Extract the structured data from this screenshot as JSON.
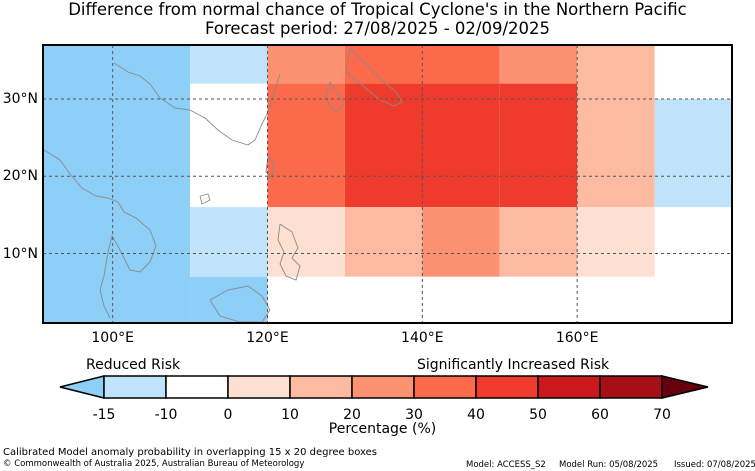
{
  "title": "Difference from normal chance of Tropical Cyclone's in the Northern Pacific",
  "forecast_period": "Forecast period: 27/08/2025 - 02/09/2025",
  "legend": {
    "low_label": "Reduced Risk",
    "high_label": "Significantly Increased Risk",
    "ticks": [
      "-15",
      "-10",
      "0",
      "10",
      "20",
      "30",
      "40",
      "50",
      "60",
      "70"
    ],
    "axis_label": "Percentage (%)",
    "colors": [
      "#8ecff7",
      "#bfe3fb",
      "#ffffff",
      "#fee0d2",
      "#fcbba1",
      "#fc9272",
      "#fb6a4a",
      "#ef3b2c",
      "#cb181d",
      "#a50f15",
      "#67000d"
    ]
  },
  "footer": {
    "note": "Calibrated Model anomaly probability in overlapping 15 x 20 degree boxes",
    "copyright": "© Commonwealth of Australia 2025, Australian Bureau of Meteorology",
    "model": "Model: ACCESS_S2",
    "model_run": "Model Run: 05/08/2025",
    "issued": "Issued: 07/08/2025"
  },
  "map": {
    "lon_range": [
      91,
      180
    ],
    "lat_range": [
      1,
      37
    ],
    "xticks": [
      {
        "lon": 100,
        "label": "100°E"
      },
      {
        "lon": 120,
        "label": "120°E"
      },
      {
        "lon": 140,
        "label": "140°E"
      },
      {
        "lon": 160,
        "label": "160°E"
      }
    ],
    "yticks": [
      {
        "lat": 10,
        "label": "10°N"
      },
      {
        "lat": 20,
        "label": "20°N"
      },
      {
        "lat": 30,
        "label": "30°N"
      }
    ]
  },
  "chart_data": {
    "type": "heatmap",
    "units": "%",
    "cells": [
      {
        "lon": [
          91,
          110
        ],
        "lat": [
          1,
          37
        ],
        "value": -15
      },
      {
        "lon": [
          110,
          120
        ],
        "lat": [
          1,
          7
        ],
        "value": -15
      },
      {
        "lon": [
          110,
          120
        ],
        "lat": [
          32,
          37
        ],
        "value": -10
      },
      {
        "lon": [
          110,
          120
        ],
        "lat": [
          7,
          16
        ],
        "value": -10
      },
      {
        "lon": [
          170,
          180
        ],
        "lat": [
          16,
          30
        ],
        "value": -10
      },
      {
        "lon": [
          120,
          130
        ],
        "lat": [
          32,
          37
        ],
        "value": 30
      },
      {
        "lon": [
          130,
          150
        ],
        "lat": [
          32,
          37
        ],
        "value": 40
      },
      {
        "lon": [
          150,
          160
        ],
        "lat": [
          32,
          37
        ],
        "value": 30
      },
      {
        "lon": [
          160,
          170
        ],
        "lat": [
          16,
          37
        ],
        "value": 20
      },
      {
        "lon": [
          120,
          130
        ],
        "lat": [
          16,
          32
        ],
        "value": 40
      },
      {
        "lon": [
          130,
          150
        ],
        "lat": [
          16,
          32
        ],
        "value": 50
      },
      {
        "lon": [
          150,
          160
        ],
        "lat": [
          16,
          32
        ],
        "value": 50
      },
      {
        "lon": [
          120,
          130
        ],
        "lat": [
          7,
          16
        ],
        "value": 10
      },
      {
        "lon": [
          130,
          140
        ],
        "lat": [
          7,
          16
        ],
        "value": 20
      },
      {
        "lon": [
          140,
          150
        ],
        "lat": [
          7,
          16
        ],
        "value": 30
      },
      {
        "lon": [
          150,
          160
        ],
        "lat": [
          7,
          16
        ],
        "value": 20
      },
      {
        "lon": [
          160,
          170
        ],
        "lat": [
          7,
          16
        ],
        "value": 10
      }
    ]
  }
}
